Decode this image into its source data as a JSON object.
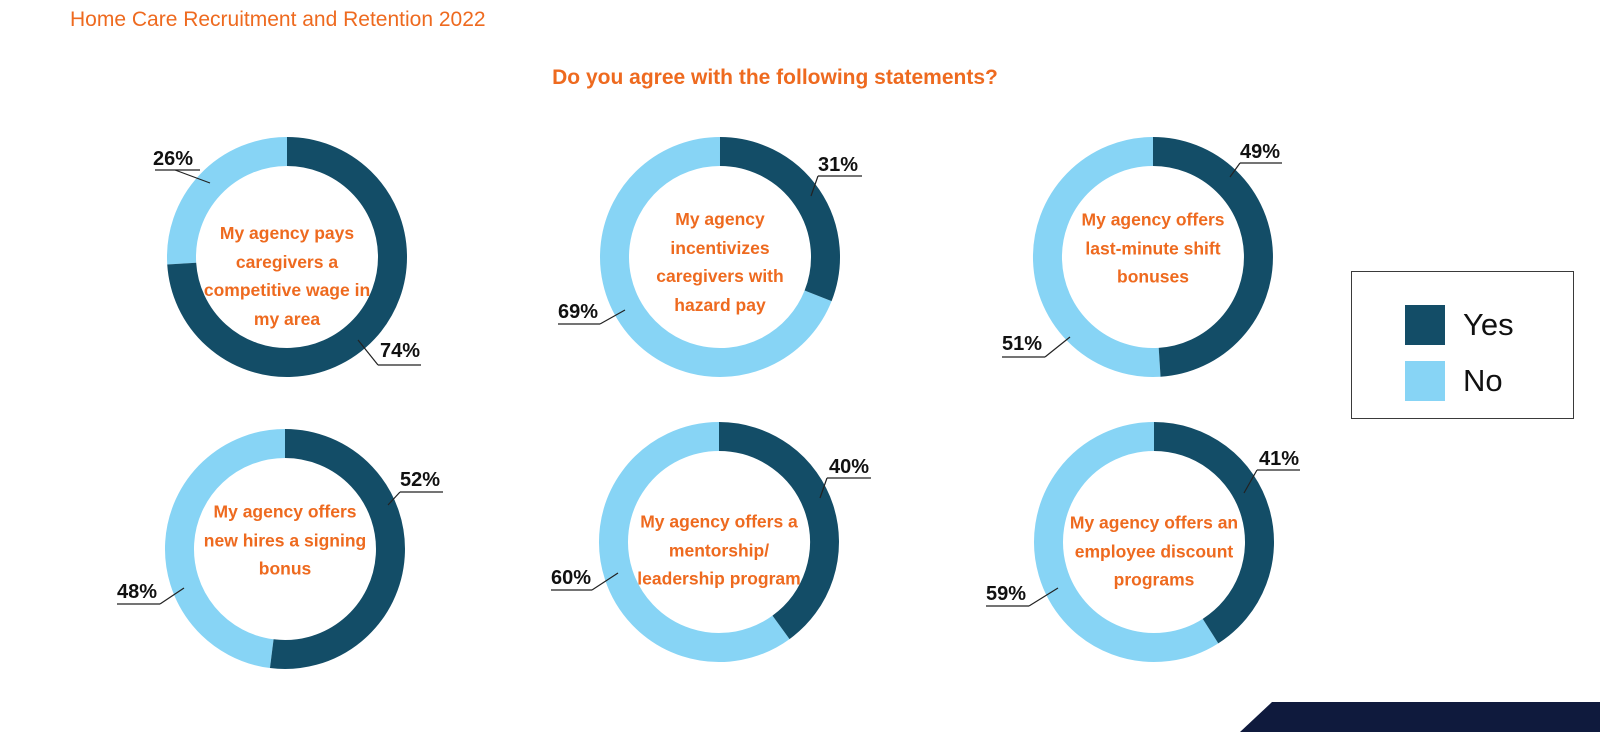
{
  "header": {
    "title": "Home Care Recruitment and Retention 2022"
  },
  "question": "Do you agree with the following statements?",
  "legend": {
    "items": [
      {
        "label": "Yes",
        "color": "#134d67"
      },
      {
        "label": "No",
        "color": "#87d4f5"
      }
    ]
  },
  "colors": {
    "yes": "#134d67",
    "no": "#87d4f5",
    "accent": "#ee6a1f",
    "footer_bar": "#0f1a3d"
  },
  "chart_data": [
    {
      "type": "pie",
      "statement": "My agency pays caregivers a competitive wage in my area",
      "series": [
        {
          "label": "Yes",
          "value": 74
        },
        {
          "label": "No",
          "value": 26
        }
      ],
      "labels": [
        "74%",
        "26%"
      ]
    },
    {
      "type": "pie",
      "statement": "My agency incentivizes caregivers with hazard pay",
      "series": [
        {
          "label": "Yes",
          "value": 31
        },
        {
          "label": "No",
          "value": 69
        }
      ],
      "labels": [
        "31%",
        "69%"
      ]
    },
    {
      "type": "pie",
      "statement": "My agency offers last-minute shift bonuses",
      "series": [
        {
          "label": "Yes",
          "value": 49
        },
        {
          "label": "No",
          "value": 51
        }
      ],
      "labels": [
        "49%",
        "51%"
      ]
    },
    {
      "type": "pie",
      "statement": "My agency offers new hires a signing bonus",
      "series": [
        {
          "label": "Yes",
          "value": 52
        },
        {
          "label": "No",
          "value": 48
        }
      ],
      "labels": [
        "52%",
        "48%"
      ]
    },
    {
      "type": "pie",
      "statement": "My agency offers a mentorship/ leadership program",
      "series": [
        {
          "label": "Yes",
          "value": 40
        },
        {
          "label": "No",
          "value": 60
        }
      ],
      "labels": [
        "40%",
        "60%"
      ]
    },
    {
      "type": "pie",
      "statement": "My agency offers an employee discount programs",
      "series": [
        {
          "label": "Yes",
          "value": 41
        },
        {
          "label": "No",
          "value": 59
        }
      ],
      "labels": [
        "41%",
        "59%"
      ]
    }
  ]
}
